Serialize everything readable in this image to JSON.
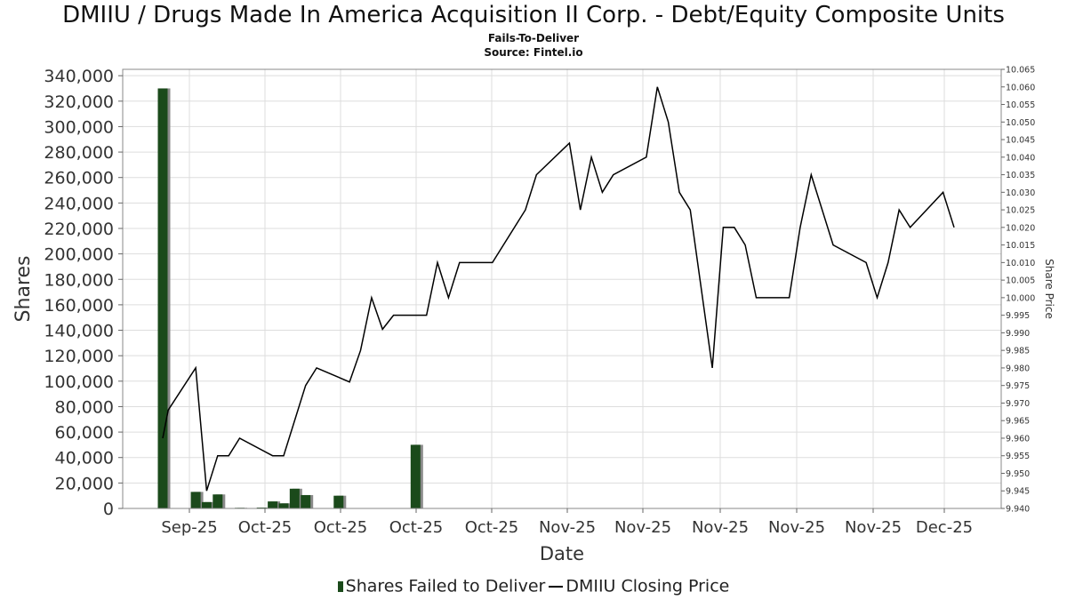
{
  "chart_data": {
    "type": "bar+line",
    "title": "DMIIU / Drugs Made In America Acquisition II Corp. - Debt/Equity Composite Units",
    "subtitle": "Fails-To-Deliver",
    "source": "Source: Fintel.io",
    "xlabel": "Date",
    "ylabel_left": "Shares",
    "ylabel_right": "Share Price",
    "x_tick_labels": [
      "Sep-25",
      "Oct-25",
      "Oct-25",
      "Oct-25",
      "Oct-25",
      "Nov-25",
      "Nov-25",
      "Nov-25",
      "Nov-25",
      "Nov-25",
      "Dec-25"
    ],
    "y_left_ticks": [
      0,
      20000,
      40000,
      60000,
      80000,
      100000,
      120000,
      140000,
      160000,
      180000,
      200000,
      220000,
      240000,
      260000,
      280000,
      300000,
      320000,
      340000
    ],
    "y_left_tick_labels": [
      "0",
      "20,000",
      "40,000",
      "60,000",
      "80,000",
      "100,000",
      "120,000",
      "140,000",
      "160,000",
      "180,000",
      "200,000",
      "220,000",
      "240,000",
      "260,000",
      "280,000",
      "300,000",
      "320,000",
      "340,000"
    ],
    "ylim_left": [
      0,
      345000
    ],
    "y_right_ticks": [
      "9.940",
      "9.945",
      "9.950",
      "9.955",
      "9.960",
      "9.965",
      "9.970",
      "9.975",
      "9.980",
      "9.985",
      "9.990",
      "9.995",
      "10.000",
      "10.005",
      "10.010",
      "10.015",
      "10.020",
      "10.025",
      "10.030",
      "10.035",
      "10.040",
      "10.045",
      "10.050",
      "10.055",
      "10.060",
      "10.065"
    ],
    "ylim_right": [
      9.94,
      10.065
    ],
    "grid": true,
    "legend_position": "bottom",
    "legend": [
      "Shares Failed to Deliver",
      "DMIIU Closing Price"
    ],
    "colors": {
      "bar": "#1b4a1b",
      "bar_shadow": "#8a8a8a",
      "line": "#000000",
      "grid": "#dddddd"
    },
    "x_index_range": [
      0,
      70
    ],
    "series": [
      {
        "name": "Shares Failed to Deliver",
        "kind": "bar",
        "points": [
          [
            3,
            330000
          ],
          [
            6,
            13000
          ],
          [
            7,
            5000
          ],
          [
            8,
            11000
          ],
          [
            10,
            500
          ],
          [
            12,
            700
          ],
          [
            13,
            5500
          ],
          [
            14,
            4000
          ],
          [
            15,
            15500
          ],
          [
            16,
            10500
          ],
          [
            19,
            10000
          ],
          [
            20,
            200
          ],
          [
            26,
            50000
          ]
        ]
      },
      {
        "name": "DMIIU Closing Price",
        "kind": "line",
        "points": [
          [
            3,
            9.96
          ],
          [
            3.5,
            9.968
          ],
          [
            6,
            9.98
          ],
          [
            7,
            9.945
          ],
          [
            8,
            9.955
          ],
          [
            9,
            9.955
          ],
          [
            10,
            9.96
          ],
          [
            13,
            9.955
          ],
          [
            14,
            9.955
          ],
          [
            16,
            9.975
          ],
          [
            17,
            9.98
          ],
          [
            20,
            9.976
          ],
          [
            21,
            9.985
          ],
          [
            22,
            10.0
          ],
          [
            23,
            9.991
          ],
          [
            24,
            9.995
          ],
          [
            27,
            9.995
          ],
          [
            28,
            10.01
          ],
          [
            29,
            10.0
          ],
          [
            30,
            10.01
          ],
          [
            33,
            10.01
          ],
          [
            36,
            10.025
          ],
          [
            37,
            10.035
          ],
          [
            40,
            10.044
          ],
          [
            41,
            10.025
          ],
          [
            42,
            10.04
          ],
          [
            43,
            10.03
          ],
          [
            44,
            10.035
          ],
          [
            47,
            10.04
          ],
          [
            48,
            10.06
          ],
          [
            49,
            10.05
          ],
          [
            50,
            10.03
          ],
          [
            51,
            10.025
          ],
          [
            53,
            9.98
          ],
          [
            54,
            10.02
          ],
          [
            55,
            10.02
          ],
          [
            56,
            10.015
          ],
          [
            57,
            10.0
          ],
          [
            60,
            10.0
          ],
          [
            61,
            10.02
          ],
          [
            62,
            10.035
          ],
          [
            64,
            10.015
          ],
          [
            67,
            10.01
          ],
          [
            68,
            10.0
          ],
          [
            69,
            10.01
          ],
          [
            70,
            10.025
          ],
          [
            71,
            10.02
          ],
          [
            74,
            10.03
          ],
          [
            75,
            10.02
          ]
        ]
      }
    ]
  }
}
